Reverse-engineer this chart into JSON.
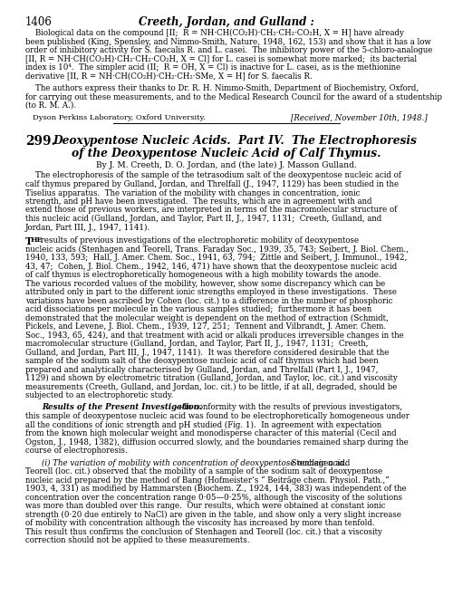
{
  "page_number": "1406",
  "header": "Creeth, Jordan, and Gulland :",
  "top_paragraph_lines": [
    "    Biological data on the compound [II;  R = NH·CH(CO₂H)·CH₂·CH₂·CO₂H, X = H] have already",
    "been published (King, Spensley, and Nimmo-Smith, Nature, 1948, 162, 153) and show that it has a low",
    "order of inhibitory activity for S. faecalis R. and L. casei.  The inhibitory power of the 5-chloro-analogue",
    "[II, R = NH·CH(CO₂H)·CH₂·CH₂·CO₂H, X = Cl] for L. casei is somewhat more marked;  its bacterial",
    "index is 10⁴.  The simpler acid (II;  R = OH, X = Cl) is inactive for L. casei, as is the methionine",
    "derivative [II, R = NH·CH(CO₂H)·CH₂·CH₂·SMe, X = H] for S. faecalis R."
  ],
  "thanks_lines": [
    "    The authors express their thanks to Dr. R. H. Nimmo-Smith, Department of Biochemistry, Oxford,",
    "for carrying out these measurements, and to the Medical Research Council for the award of a studentship",
    "(to R. M. A.)."
  ],
  "institution": "Dyson Perkins Laboratory, Oxford University.",
  "received": "[Received, November 10th, 1948.]",
  "article_number": "299.",
  "article_title_line1": "Deoxypentose Nucleic Acids.  Part IV.  The Electrophoresis",
  "article_title_line2": "of the Deoxypentose Nucleic Acid of Calf Thymus.",
  "byline": "By J. M. Creeth, D. O. Jordan, and (the late) J. Masson Gulland.",
  "abstract_lines": [
    "    The electrophoresis of the sample of the tetrasodium salt of the deoxypentose nucleic acid of",
    "calf thymus prepared by Gulland, Jordan, and Threlfall (J., 1947, 1129) has been studied in the",
    "Tiselius apparatus.  The variation of the mobility with changes in concentration, ionic",
    "strength, and pH have been investigated.  The results, which are in agreement with and",
    "extend those of previous workers, are interpreted in terms of the macromolecular structure of",
    "this nucleic acid (Gulland, Jordan, and Taylor, Part II, J., 1947, 1131;  Creeth, Gulland, and",
    "Jordan, Part III, J., 1947, 1141)."
  ],
  "main_lines": [
    " results of previous investigations of the electrophoretic mobility of deoxypentose",
    "nucleic acids (Stenhagen and Teorell, Trans. Faraday Soc., 1939, 35, 743; Seibert, J. Biol. Chem.,",
    "1940, 133, 593;  Hall, J. Amer. Chem. Soc., 1941, 63, 794;  Zittle and Seibert, J. Immunol., 1942,",
    "43, 47;  Cohen, J. Biol. Chem., 1942, 146, 471) have shown that the deoxypentose nucleic acid",
    "of calf thymus is electrophoretically homogeneous with a high mobility towards the anode.",
    "The various recorded values of the mobility, however, show some discrepancy which can be",
    "attributed only in part to the different ionic strengths employed in these investigations.  These",
    "variations have been ascribed by Cohen (loc. cit.) to a difference in the number of phosphoric",
    "acid dissociations per molecule in the various samples studied;  furthermore it has been",
    "demonstrated that the molecular weight is dependent on the method of extraction (Schmidt,",
    "Pickels, and Levene, J. Biol. Chem., 1939, 127, 251;  Tennent and Vilbrandt, J. Amer. Chem.",
    "Soc., 1943, 65, 424), and that treatment with acid or alkali produces irreversible changes in the",
    "macromolecular structure (Gulland, Jordan, and Taylor, Part II, J., 1947, 1131;  Creeth,",
    "Gulland, and Jordan, Part III, J., 1947, 1141).  It was therefore considered desirable that the",
    "sample of the sodium salt of the deoxypentose nucleic acid of calf thymus which had been",
    "prepared and analytically characterised by Gulland, Jordan, and Threlfall (Part I, J., 1947,",
    "1129) and shown by electrometric titration (Gulland, Jordan, and Taylor, loc. cit.) and viscosity",
    "measurements (Creeth, Gulland, and Jordan, loc. cit.) to be little, if at all, degraded, should be",
    "subjected to an electrophoretic study."
  ],
  "results_heading": "Results of the Present Investigation.",
  "results_lines": [
    "—In conformity with the results of previous investigators,",
    "this sample of deoxypentose nucleic acid was found to be electrophoretically homogeneous under",
    "all the conditions of ionic strength and pH studied (Fig. 1).  In agreement with expectation",
    "from the known high molecular weight and monodisperse character of this material (Cecil and",
    "Ogston, J., 1948, 1382), diffusion occurred slowly, and the boundaries remained sharp during the",
    "course of electrophoresis."
  ],
  "section_i_heading": "(i) The variation of mobility with concentration of deoxypentose nucleic acid.",
  "section_i_lines": [
    "  Stenhagen and",
    "Teorell (loc. cit.) observed that the mobility of a sample of the sodium salt of deoxypentose",
    "nucleic acid prepared by the method of Bang (Hofmeister’s “ Beiträge chem. Physiol. Path.,”",
    "1903, 4, 331) as modified by Hammarsten (Biochem. Z., 1924, 144, 383) was independent of the",
    "concentration over the concentration range 0·05—0·25%, although the viscosity of the solutions",
    "was more than doubled over this range.  Our results, which were obtained at constant ionic",
    "strength (0·20 due entirely to NaCl) are given in the table, and show only a very slight increase",
    "of mobility with concentration although the viscosity has increased by more than tenfold.",
    "This result thus confirms the conclusion of Stenhagen and Teorell (loc. cit.) that a viscosity",
    "correction should not be applied to these measurements."
  ],
  "background_color": "#ffffff",
  "text_color": "#000000"
}
